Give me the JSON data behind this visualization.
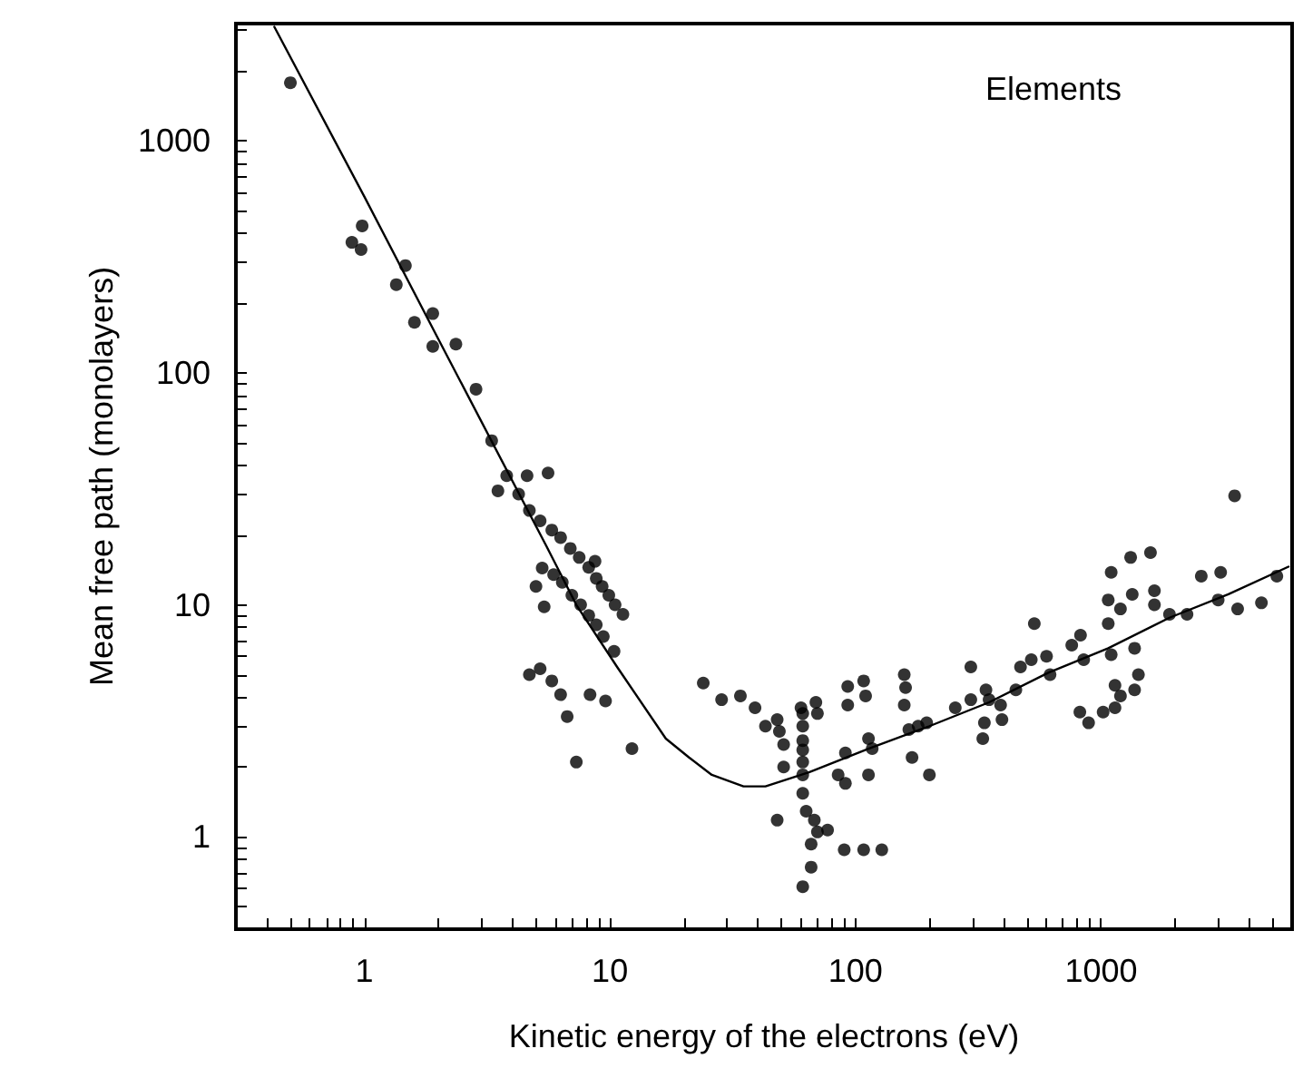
{
  "chart_data": {
    "type": "scatter",
    "xlabel": "Kinetic energy of the electrons (eV)",
    "ylabel": "Mean free path (monolayers)",
    "annotations": [
      "Elements"
    ],
    "log": "xy",
    "grid": false,
    "marker": "circle",
    "xlim": [
      0.3,
      6000
    ],
    "ylim": [
      0.4,
      3200
    ],
    "xticks": [
      {
        "value": 0.4,
        "label": null
      },
      {
        "value": 0.5,
        "label": null
      },
      {
        "value": 0.6,
        "label": null
      },
      {
        "value": 0.7,
        "label": null
      },
      {
        "value": 0.8,
        "label": null
      },
      {
        "value": 0.9,
        "label": null
      },
      1,
      {
        "value": 2,
        "label": null
      },
      {
        "value": 3,
        "label": null
      },
      {
        "value": 4,
        "label": null
      },
      {
        "value": 5,
        "label": null
      },
      {
        "value": 6,
        "label": null
      },
      {
        "value": 7,
        "label": null
      },
      {
        "value": 8,
        "label": null
      },
      {
        "value": 9,
        "label": null
      },
      10,
      {
        "value": 20,
        "label": null
      },
      {
        "value": 30,
        "label": null
      },
      {
        "value": 40,
        "label": null
      },
      {
        "value": 50,
        "label": null
      },
      {
        "value": 60,
        "label": null
      },
      {
        "value": 70,
        "label": null
      },
      {
        "value": 80,
        "label": null
      },
      {
        "value": 90,
        "label": null
      },
      100,
      {
        "value": 200,
        "label": null
      },
      {
        "value": 300,
        "label": null
      },
      {
        "value": 400,
        "label": null
      },
      {
        "value": 500,
        "label": null
      },
      {
        "value": 600,
        "label": null
      },
      {
        "value": 700,
        "label": null
      },
      {
        "value": 800,
        "label": null
      },
      {
        "value": 900,
        "label": null
      },
      1000,
      {
        "value": 2000,
        "label": null
      },
      {
        "value": 3000,
        "label": null
      },
      {
        "value": 4000,
        "label": null
      },
      {
        "value": 5000,
        "label": null
      }
    ],
    "yticks": [
      {
        "value": 0.5,
        "label": null
      },
      {
        "value": 0.6,
        "label": null
      },
      {
        "value": 0.7,
        "label": null
      },
      {
        "value": 0.8,
        "label": null
      },
      {
        "value": 0.9,
        "label": null
      },
      1,
      {
        "value": 2,
        "label": null
      },
      {
        "value": 3,
        "label": null
      },
      {
        "value": 4,
        "label": null
      },
      {
        "value": 5,
        "label": null
      },
      {
        "value": 6,
        "label": null
      },
      {
        "value": 7,
        "label": null
      },
      {
        "value": 8,
        "label": null
      },
      {
        "value": 9,
        "label": null
      },
      10,
      {
        "value": 20,
        "label": null
      },
      {
        "value": 30,
        "label": null
      },
      {
        "value": 40,
        "label": null
      },
      {
        "value": 50,
        "label": null
      },
      {
        "value": 60,
        "label": null
      },
      {
        "value": 70,
        "label": null
      },
      {
        "value": 80,
        "label": null
      },
      {
        "value": 90,
        "label": null
      },
      100,
      {
        "value": 200,
        "label": null
      },
      {
        "value": 300,
        "label": null
      },
      {
        "value": 400,
        "label": null
      },
      {
        "value": 500,
        "label": null
      },
      {
        "value": 600,
        "label": null
      },
      {
        "value": 700,
        "label": null
      },
      {
        "value": 800,
        "label": null
      },
      {
        "value": 900,
        "label": null
      },
      1000,
      {
        "value": 2000,
        "label": null
      },
      {
        "value": 3000,
        "label": null
      }
    ],
    "series": [
      {
        "color": "#000000",
        "x": [
          0.5,
          0.89,
          0.98,
          0.97,
          1.47,
          1.35,
          1.9,
          1.6,
          1.9,
          2.36,
          2.85,
          3.3,
          3.8,
          3.5,
          4.6,
          5.6,
          4.25,
          4.7,
          5.2,
          5.8,
          6.3,
          6.9,
          7.5,
          8.2,
          8.8,
          9.3,
          9.9,
          10.5,
          11.3,
          8.7,
          5.3,
          5.9,
          6.4,
          7.0,
          7.6,
          8.2,
          8.8,
          9.4,
          10.4,
          5.0,
          5.4,
          4.7,
          5.2,
          5.8,
          6.3,
          6.7,
          7.3,
          8.3,
          9.6,
          12.3,
          24,
          28.5,
          34,
          39,
          43,
          48,
          49,
          51,
          51,
          48,
          60,
          61,
          61,
          61,
          61,
          61,
          61,
          69,
          70,
          61,
          63,
          68,
          70,
          66,
          66,
          61,
          77,
          90,
          108,
          128,
          85,
          91,
          91,
          93,
          93,
          108,
          110,
          113,
          117,
          113,
          158,
          160,
          158,
          165,
          180,
          195,
          170,
          200,
          255,
          295,
          295,
          340,
          350,
          335,
          330,
          390,
          395,
          450,
          470,
          520,
          535,
          600,
          620,
          760,
          820,
          890,
          1020,
          1140,
          850,
          825,
          1100,
          1070,
          1070,
          1100,
          1140,
          1200,
          1200,
          1320,
          1590,
          1340,
          1370,
          1420,
          1370,
          1650,
          1650,
          1900,
          2240,
          2560,
          3070,
          3000,
          3600,
          4500,
          5200,
          3500
        ],
        "values": [
          1780,
          365,
          430,
          340,
          290,
          240,
          180,
          165,
          130,
          133,
          85,
          51,
          36,
          31,
          36,
          37,
          30,
          25.5,
          23,
          21,
          19.5,
          17.5,
          16,
          14.5,
          13,
          12,
          11,
          10,
          9.1,
          15.4,
          14.4,
          13.5,
          12.5,
          11,
          10,
          9,
          8.2,
          7.3,
          6.3,
          12,
          9.8,
          5.0,
          5.3,
          4.7,
          4.1,
          3.3,
          2.1,
          4.1,
          3.85,
          2.4,
          4.6,
          3.9,
          4.05,
          3.6,
          3.0,
          3.2,
          2.85,
          2.5,
          2.0,
          1.18,
          3.6,
          3.4,
          3.0,
          2.6,
          2.37,
          2.1,
          1.85,
          3.8,
          3.4,
          1.54,
          1.29,
          1.18,
          1.05,
          0.93,
          0.74,
          0.61,
          1.07,
          0.88,
          0.88,
          0.88,
          1.85,
          1.7,
          2.3,
          3.7,
          4.45,
          4.7,
          4.05,
          2.65,
          2.4,
          1.85,
          5.0,
          4.4,
          3.7,
          2.9,
          3.0,
          3.1,
          2.2,
          1.85,
          3.6,
          3.9,
          5.4,
          4.3,
          3.9,
          3.1,
          2.65,
          3.7,
          3.2,
          4.3,
          5.4,
          5.8,
          8.3,
          6.0,
          5.0,
          6.7,
          3.45,
          3.1,
          3.45,
          3.6,
          5.8,
          7.4,
          13.8,
          10.5,
          8.3,
          6.1,
          4.5,
          4.05,
          9.6,
          16,
          16.8,
          11.1,
          6.5,
          5.0,
          4.3,
          11.5,
          10,
          9.1,
          9.1,
          13.3,
          13.8,
          10.5,
          9.6,
          10.2,
          13.3,
          29.5
        ]
      },
      {
        "type": "line",
        "color": "#000000",
        "marker": "none",
        "line_style": "solid",
        "x": [
          0.43,
          1,
          2,
          5.5,
          7.3,
          10.7,
          16.9,
          21,
          26,
          35,
          43,
          65,
          113,
          200,
          350,
          610,
          1070,
          1900,
          3300,
          5800
        ],
        "values": [
          3100,
          575,
          140,
          18,
          10,
          5.4,
          2.65,
          2.2,
          1.85,
          1.65,
          1.65,
          1.9,
          2.4,
          3.0,
          3.8,
          5.1,
          6.5,
          8.8,
          11.1,
          14.6
        ]
      }
    ]
  }
}
